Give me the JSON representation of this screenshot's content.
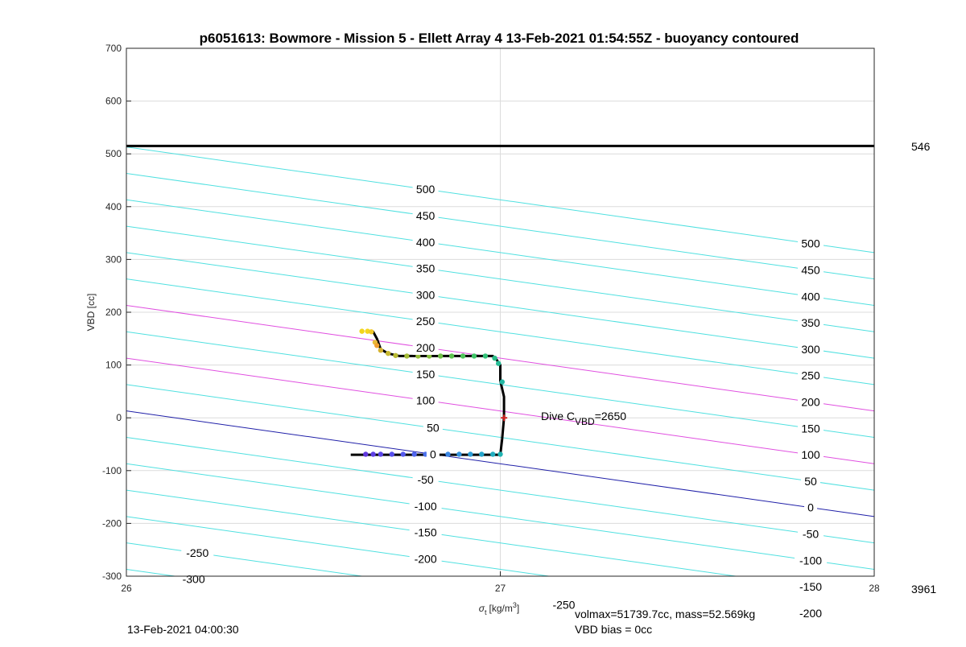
{
  "chart_data": {
    "type": "scatter",
    "title": "p6051613: Bowmore - Mission 5 - Ellett Array 4 13-Feb-2021 01:54:55Z - buoyancy contoured",
    "xlabel_main": "σ",
    "xlabel_sub": "t",
    "xlabel_units": "[kg/m",
    "xlabel_sup": "3",
    "xlabel_close": "]",
    "ylabel": "VBD [cc]",
    "xlim": [
      26,
      28
    ],
    "ylim": [
      -300,
      700
    ],
    "xticks": [
      "26",
      "27",
      "28"
    ],
    "yticks": [
      "-300",
      "-200",
      "-100",
      "0",
      "100",
      "200",
      "300",
      "400",
      "500",
      "600",
      "700"
    ],
    "grid": true,
    "right_labels": {
      "top": "546",
      "bottom": "3961"
    },
    "footer_left": "13-Feb-2021 04:00:30",
    "footer_right_1": "volmax=51739.7cc, mass=52.569kg",
    "footer_right_2": "VBD bias = 0cc",
    "annotation": {
      "prefix": "Dive C",
      "sub": "VBD",
      "suffix": "=2650",
      "x": 27.11,
      "y": 0
    },
    "max_vbd_line": 515,
    "contour_slope_per_unit": -100,
    "contours": [
      {
        "level": -300,
        "at26": -287,
        "labels": [
          {
            "text": "-300",
            "x": 26.18
          }
        ]
      },
      {
        "level": -250,
        "at26": -237,
        "labels": [
          {
            "text": "-250",
            "x": 26.19
          },
          {
            "text": "-250",
            "x": 27.17
          }
        ]
      },
      {
        "level": -200,
        "at26": -187,
        "labels": [
          {
            "text": "-200",
            "x": 26.8
          },
          {
            "text": "-200",
            "x": 27.83
          }
        ]
      },
      {
        "level": -150,
        "at26": -137,
        "labels": [
          {
            "text": "-150",
            "x": 26.8
          },
          {
            "text": "-150",
            "x": 27.83
          }
        ]
      },
      {
        "level": -100,
        "at26": -87,
        "labels": [
          {
            "text": "-100",
            "x": 26.8
          },
          {
            "text": "-100",
            "x": 27.83
          }
        ]
      },
      {
        "level": -50,
        "at26": -37,
        "labels": [
          {
            "text": "-50",
            "x": 26.8
          },
          {
            "text": "-50",
            "x": 27.83
          }
        ]
      },
      {
        "level": 0,
        "at26": 13,
        "labels": [
          {
            "text": "0",
            "x": 26.82
          },
          {
            "text": "0",
            "x": 27.83
          }
        ]
      },
      {
        "level": 50,
        "at26": 63,
        "labels": [
          {
            "text": "50",
            "x": 26.82
          },
          {
            "text": "50",
            "x": 27.83
          }
        ]
      },
      {
        "level": 100,
        "at26": 113,
        "labels": [
          {
            "text": "100",
            "x": 26.8
          },
          {
            "text": "100",
            "x": 27.83
          }
        ]
      },
      {
        "level": 150,
        "at26": 163,
        "labels": [
          {
            "text": "150",
            "x": 26.8
          },
          {
            "text": "150",
            "x": 27.83
          }
        ]
      },
      {
        "level": 200,
        "at26": 213,
        "labels": [
          {
            "text": "200",
            "x": 26.8
          },
          {
            "text": "200",
            "x": 27.83
          }
        ]
      },
      {
        "level": 250,
        "at26": 263,
        "labels": [
          {
            "text": "250",
            "x": 26.8
          },
          {
            "text": "250",
            "x": 27.83
          }
        ]
      },
      {
        "level": 300,
        "at26": 313,
        "labels": [
          {
            "text": "300",
            "x": 26.8
          },
          {
            "text": "300",
            "x": 27.83
          }
        ]
      },
      {
        "level": 350,
        "at26": 363,
        "labels": [
          {
            "text": "350",
            "x": 26.8
          },
          {
            "text": "350",
            "x": 27.83
          }
        ]
      },
      {
        "level": 400,
        "at26": 413,
        "labels": [
          {
            "text": "400",
            "x": 26.8
          },
          {
            "text": "400",
            "x": 27.83
          }
        ]
      },
      {
        "level": 450,
        "at26": 463,
        "labels": [
          {
            "text": "450",
            "x": 26.8
          },
          {
            "text": "450",
            "x": 27.83
          }
        ]
      },
      {
        "level": 500,
        "at26": 513,
        "labels": [
          {
            "text": "500",
            "x": 26.8
          },
          {
            "text": "500",
            "x": 27.83
          }
        ]
      }
    ],
    "track_path": [
      [
        26.64,
        164
      ],
      [
        26.66,
        163
      ],
      [
        26.67,
        150
      ],
      [
        26.68,
        130
      ],
      [
        26.7,
        122
      ],
      [
        26.73,
        117
      ],
      [
        26.8,
        117
      ],
      [
        26.9,
        117
      ],
      [
        26.98,
        117
      ],
      [
        26.99,
        110
      ],
      [
        27.0,
        100
      ],
      [
        27.0,
        70
      ],
      [
        27.01,
        40
      ],
      [
        27.01,
        0
      ],
      [
        27.005,
        -40
      ],
      [
        27.0,
        -70
      ],
      [
        26.9,
        -70
      ],
      [
        26.8,
        -70
      ],
      [
        26.7,
        -70
      ],
      [
        26.6,
        -70
      ]
    ],
    "track_points": [
      {
        "x": 26.63,
        "y": 164,
        "c": "#f2d51b"
      },
      {
        "x": 26.645,
        "y": 164,
        "c": "#f5d61c"
      },
      {
        "x": 26.655,
        "y": 163,
        "c": "#f0c82a"
      },
      {
        "x": 26.665,
        "y": 143,
        "c": "#e8b93a"
      },
      {
        "x": 26.67,
        "y": 137,
        "c": "#f0a030"
      },
      {
        "x": 26.68,
        "y": 128,
        "c": "#d6b32e"
      },
      {
        "x": 26.7,
        "y": 122,
        "c": "#c8b830"
      },
      {
        "x": 26.72,
        "y": 118,
        "c": "#b8ba33"
      },
      {
        "x": 26.75,
        "y": 117,
        "c": "#a5bc38"
      },
      {
        "x": 26.78,
        "y": 117,
        "c": "#96bd3c"
      },
      {
        "x": 26.81,
        "y": 117,
        "c": "#86bf40"
      },
      {
        "x": 26.84,
        "y": 117,
        "c": "#70c048"
      },
      {
        "x": 26.87,
        "y": 117,
        "c": "#5ec350"
      },
      {
        "x": 26.9,
        "y": 117,
        "c": "#4ec45a"
      },
      {
        "x": 26.93,
        "y": 117,
        "c": "#40c468"
      },
      {
        "x": 26.96,
        "y": 117,
        "c": "#34c37a"
      },
      {
        "x": 26.985,
        "y": 113,
        "c": "#2cc08a"
      },
      {
        "x": 26.995,
        "y": 103,
        "c": "#26bd96"
      },
      {
        "x": 27.005,
        "y": 68,
        "c": "#22b8a4"
      },
      {
        "x": 27.0,
        "y": -69,
        "c": "#20b3b2"
      },
      {
        "x": 26.98,
        "y": -69,
        "c": "#22aec0"
      },
      {
        "x": 26.95,
        "y": -69,
        "c": "#26a6cc"
      },
      {
        "x": 26.92,
        "y": -69,
        "c": "#2c9dd6"
      },
      {
        "x": 26.89,
        "y": -69,
        "c": "#3393de"
      },
      {
        "x": 26.86,
        "y": -69,
        "c": "#3b88e4"
      },
      {
        "x": 26.83,
        "y": -69,
        "c": "#437ce8"
      },
      {
        "x": 26.8,
        "y": -69,
        "c": "#4a70eb"
      },
      {
        "x": 26.77,
        "y": -69,
        "c": "#4f65ed"
      },
      {
        "x": 26.74,
        "y": -69,
        "c": "#5459ee"
      },
      {
        "x": 26.71,
        "y": -69,
        "c": "#574fec"
      },
      {
        "x": 26.68,
        "y": -69,
        "c": "#5b46e8"
      },
      {
        "x": 26.66,
        "y": -69,
        "c": "#5e40e4"
      },
      {
        "x": 26.64,
        "y": -69,
        "c": "#6038dc"
      }
    ],
    "marker": {
      "x": 27.01,
      "y": 0,
      "color": "#d62020"
    },
    "colors": {
      "contour": "#4fe0e0",
      "contour_highlight": "#e04fe0",
      "zero_line": "#1f1fa8",
      "track": "#000000",
      "grid": "#dcdcdc",
      "axis": "#262626"
    }
  }
}
